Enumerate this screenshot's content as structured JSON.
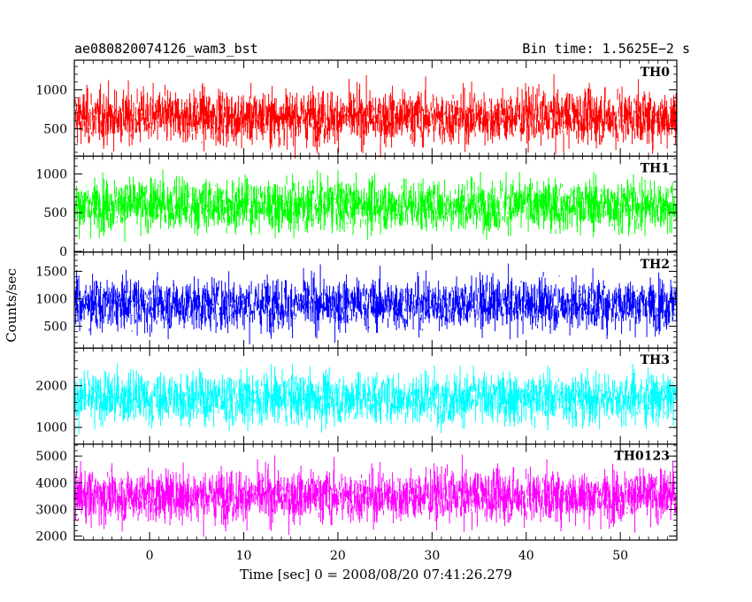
{
  "chart_data": {
    "type": "line",
    "title_left": "ae080820074126_wam3_bst",
    "title_right": "Bin time: 1.5625E−2 s",
    "xlabel": "Time [sec] 0 = 2008/08/20 07:41:26.279",
    "ylabel": "Counts/sec",
    "xlim": [
      -8,
      56
    ],
    "x_ticks": [
      0,
      10,
      20,
      30,
      40,
      50
    ],
    "x_signal_range": [
      -7.9,
      56.0
    ],
    "bin_time": 0.015625,
    "panels": [
      {
        "name": "TH0",
        "color": "#ff0000",
        "ylim": [
          150,
          1380
        ],
        "y_ticks": [
          500,
          1000
        ],
        "approx_mean": 650,
        "approx_min": 120,
        "approx_max": 1380
      },
      {
        "name": "TH1",
        "color": "#00ff00",
        "ylim": [
          -10,
          1230
        ],
        "y_ticks": [
          0,
          500,
          1000
        ],
        "approx_mean": 600,
        "approx_min": 0,
        "approx_max": 1230
      },
      {
        "name": "TH2",
        "color": "#0000ff",
        "ylim": [
          100,
          1850
        ],
        "y_ticks": [
          500,
          1000,
          1500
        ],
        "approx_mean": 900,
        "approx_min": 150,
        "approx_max": 1850
      },
      {
        "name": "TH3",
        "color": "#00ffff",
        "ylim": [
          600,
          2900
        ],
        "y_ticks": [
          1000,
          2000
        ],
        "approx_mean": 1700,
        "approx_min": 650,
        "approx_max": 2900
      },
      {
        "name": "TH0123",
        "color": "#ff00ff",
        "ylim": [
          1850,
          5450
        ],
        "y_ticks": [
          2000,
          3000,
          4000,
          5000
        ],
        "approx_mean": 3500,
        "approx_min": 1900,
        "approx_max": 5450
      }
    ]
  }
}
